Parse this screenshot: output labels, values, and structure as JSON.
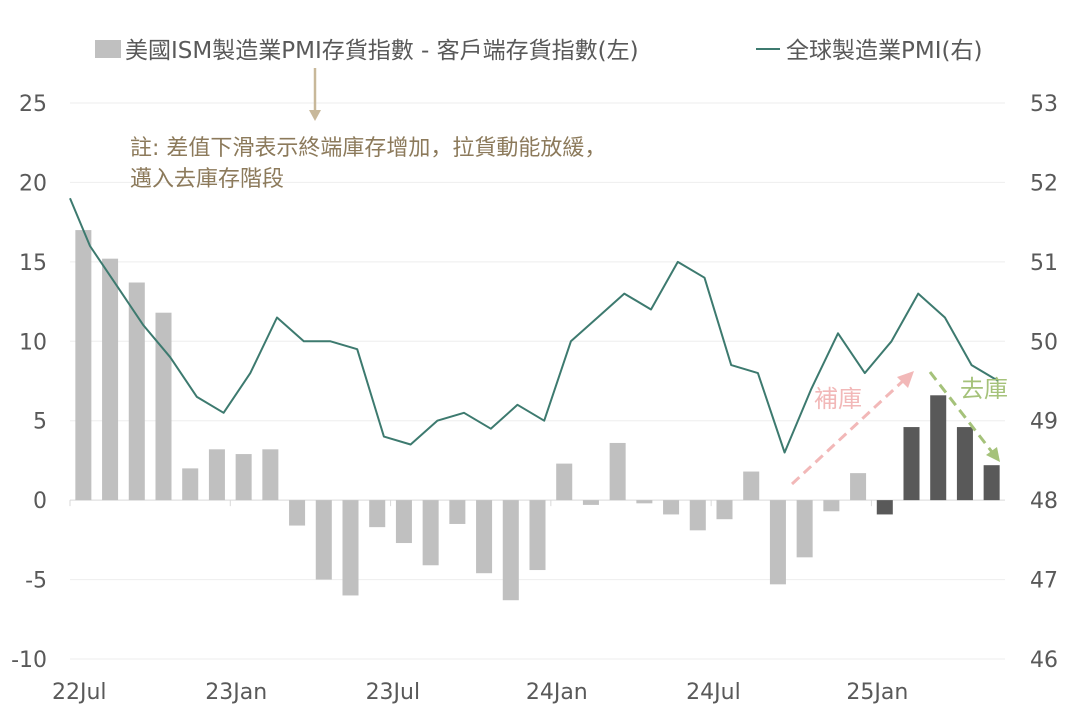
{
  "chart_data": {
    "type": "bar+line",
    "legend": {
      "bar_label": "美國ISM製造業PMI存貨指數 - 客戶端存貨指數(左)",
      "line_label": "全球製造業PMI(右)",
      "placement": "top"
    },
    "left_axis": {
      "ylim": [
        -10,
        25
      ],
      "ticks": [
        "25",
        "20",
        "15",
        "10",
        "5",
        "0",
        "-5",
        "-10"
      ]
    },
    "right_axis": {
      "ylim": [
        46,
        53
      ],
      "ticks": [
        "53",
        "52",
        "51",
        "50",
        "49",
        "48",
        "47",
        "46"
      ]
    },
    "x_tick_labels": [
      "22Jul",
      "23Jan",
      "23Jul",
      "24Jan",
      "24Jul",
      "25Jan"
    ],
    "x_tick_positions": [
      0,
      6,
      12,
      18,
      24,
      30
    ],
    "months": [
      "2022-07",
      "2022-08",
      "2022-09",
      "2022-10",
      "2022-11",
      "2022-12",
      "2023-01",
      "2023-02",
      "2023-03",
      "2023-04",
      "2023-05",
      "2023-06",
      "2023-07",
      "2023-08",
      "2023-09",
      "2023-10",
      "2023-11",
      "2023-12",
      "2024-01",
      "2024-02",
      "2024-03",
      "2024-04",
      "2024-05",
      "2024-06",
      "2024-07",
      "2024-08",
      "2024-09",
      "2024-10",
      "2024-11",
      "2024-12",
      "2025-01",
      "2025-02",
      "2025-03",
      "2025-04",
      "2025-05"
    ],
    "bar_series": {
      "values": [
        17.0,
        15.2,
        13.7,
        11.8,
        2.0,
        3.2,
        2.9,
        3.2,
        -1.6,
        -5.0,
        -6.0,
        -1.7,
        -2.7,
        -4.1,
        -1.5,
        -4.6,
        -6.3,
        -4.4,
        2.3,
        -0.3,
        3.6,
        -0.2,
        -0.9,
        -1.9,
        -1.2,
        1.8,
        -5.3,
        -3.6,
        -0.7,
        1.7,
        -0.9,
        4.6,
        6.6,
        4.6,
        2.2
      ],
      "highlight_from_index": 30,
      "colors": {
        "normal": "#c0c0c0",
        "highlight": "#595959"
      }
    },
    "line_series": {
      "x_offset": -0.75,
      "values": [
        51.8,
        51.2,
        50.7,
        50.2,
        49.8,
        49.3,
        49.1,
        49.6,
        50.3,
        50.0,
        50.0,
        49.9,
        48.8,
        48.7,
        49.0,
        49.1,
        48.9,
        49.2,
        49.0,
        50.0,
        50.3,
        50.6,
        50.4,
        51.0,
        50.8,
        49.7,
        49.6,
        48.6,
        49.4,
        50.1,
        49.6,
        50.0,
        50.6,
        50.3,
        49.7,
        49.5
      ],
      "color": "#3d7a6f"
    },
    "note_lines": [
      "註: 差值下滑表示終端庫存增加，拉貨動能放緩，",
      "邁入去庫存階段"
    ],
    "annotations": {
      "restock": {
        "label": "補庫",
        "color": "#f2b8b8"
      },
      "destock": {
        "label": "去庫",
        "color": "#a5c27a"
      }
    }
  }
}
